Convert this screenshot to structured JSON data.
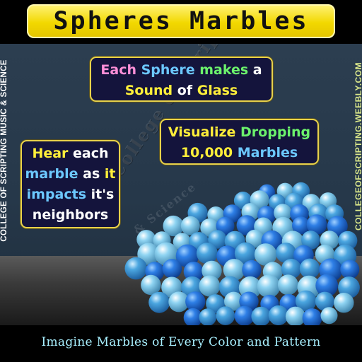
{
  "title": "Spheres Marbles",
  "side_left": "COLLEGE OF SCRIPTING MUSIC & SCIENCE",
  "side_right": "COLLEGEOFSCRIPTING.WEEBLY.COM",
  "box1": {
    "line1": [
      {
        "text": "Each ",
        "color": "pink"
      },
      {
        "text": "Sphere ",
        "color": "cyan"
      },
      {
        "text": "makes ",
        "color": "green"
      },
      {
        "text": "a",
        "color": "white"
      }
    ],
    "line2": [
      {
        "text": "Sound ",
        "color": "yellow"
      },
      {
        "text": "of ",
        "color": "white"
      },
      {
        "text": "Glass",
        "color": "yellow"
      }
    ]
  },
  "box2": {
    "line1": [
      {
        "text": "Visualize ",
        "color": "yellow"
      },
      {
        "text": "Dropping",
        "color": "green"
      }
    ],
    "line2": [
      {
        "text": "10,000 ",
        "color": "yellow"
      },
      {
        "text": "Marbles",
        "color": "cyan"
      }
    ]
  },
  "box3": {
    "line1": [
      {
        "text": "Hear ",
        "color": "yellow"
      },
      {
        "text": "each",
        "color": "white"
      }
    ],
    "line2": [
      {
        "text": "marble ",
        "color": "cyan"
      },
      {
        "text": "as ",
        "color": "white"
      },
      {
        "text": "it",
        "color": "yellow"
      }
    ],
    "line3": [
      {
        "text": "impacts ",
        "color": "cyan"
      },
      {
        "text": "it's",
        "color": "white"
      }
    ],
    "line4": [
      {
        "text": "neighbors",
        "color": "white"
      }
    ]
  },
  "watermark": "College of Scripting Music",
  "watermark2": "& Science",
  "bottom_caption": "Imagine Marbles of Every Color and Pattern",
  "colors": {
    "title_bg": "#f2d800",
    "box_bg": "#14143c",
    "box_border": "#e8d24a",
    "marble_dark": "#1f6fd8",
    "marble_light": "#6fc2ea",
    "background": "#26384a",
    "caption": "#a8f0ff"
  }
}
